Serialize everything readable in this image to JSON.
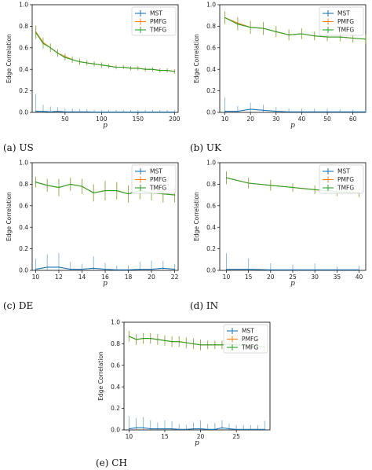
{
  "colors": {
    "MST": "#1f77b4",
    "PMFG": "#ff7f0e",
    "TMFG": "#2ca02c",
    "errbar_alpha": 0.55
  },
  "chart_data": [
    {
      "id": "us",
      "type": "line",
      "caption": "(a)  US",
      "xlabel": "p",
      "ylabel": "Edge Correlation",
      "xlim": [
        5,
        205
      ],
      "ylim": [
        0,
        1.0
      ],
      "xticks": [
        50,
        100,
        150,
        200
      ],
      "yticks": [
        0.0,
        0.2,
        0.4,
        0.6,
        0.8,
        1.0
      ],
      "legend": "top-right",
      "series": [
        {
          "name": "MST",
          "x": [
            10,
            20,
            30,
            40,
            50,
            60,
            70,
            80,
            90,
            100,
            110,
            120,
            130,
            140,
            150,
            160,
            170,
            180,
            190,
            200
          ],
          "y": [
            0.01,
            0.01,
            0.005,
            0.01,
            0.005,
            0.005,
            0.005,
            0.005,
            0.003,
            0.003,
            0.003,
            0.003,
            0.003,
            0.003,
            0.003,
            0.003,
            0.003,
            0.003,
            0.003,
            0.003
          ],
          "err": [
            0.16,
            0.06,
            0.05,
            0.04,
            0.03,
            0.03,
            0.025,
            0.025,
            0.02,
            0.02,
            0.02,
            0.02,
            0.02,
            0.02,
            0.02,
            0.02,
            0.02,
            0.02,
            0.02,
            0.02
          ]
        },
        {
          "name": "PMFG",
          "x": [
            10,
            20,
            30,
            40,
            50,
            60,
            70,
            80,
            90,
            100,
            110,
            120,
            130,
            140,
            150,
            160,
            170,
            180,
            190,
            200
          ],
          "y": [
            0.75,
            0.65,
            0.6,
            0.55,
            0.52,
            0.49,
            0.47,
            0.46,
            0.45,
            0.44,
            0.43,
            0.42,
            0.42,
            0.41,
            0.41,
            0.4,
            0.4,
            0.39,
            0.39,
            0.38
          ],
          "err": [
            0.06,
            0.05,
            0.04,
            0.035,
            0.03,
            0.03,
            0.03,
            0.025,
            0.025,
            0.025,
            0.02,
            0.02,
            0.02,
            0.02,
            0.02,
            0.02,
            0.02,
            0.02,
            0.02,
            0.02
          ]
        },
        {
          "name": "TMFG",
          "x": [
            10,
            20,
            30,
            40,
            50,
            60,
            70,
            80,
            90,
            100,
            110,
            120,
            130,
            140,
            150,
            160,
            170,
            180,
            190,
            200
          ],
          "y": [
            0.74,
            0.64,
            0.6,
            0.55,
            0.51,
            0.49,
            0.47,
            0.46,
            0.45,
            0.44,
            0.43,
            0.42,
            0.42,
            0.41,
            0.41,
            0.4,
            0.4,
            0.39,
            0.39,
            0.38
          ],
          "err": [
            0.06,
            0.05,
            0.04,
            0.035,
            0.03,
            0.03,
            0.03,
            0.025,
            0.025,
            0.025,
            0.02,
            0.02,
            0.02,
            0.02,
            0.02,
            0.02,
            0.02,
            0.02,
            0.02,
            0.02
          ]
        }
      ]
    },
    {
      "id": "uk",
      "type": "line",
      "caption": "(b)  UK",
      "xlabel": "p",
      "ylabel": "Edge Correlation",
      "xlim": [
        8,
        65
      ],
      "ylim": [
        0,
        1.0
      ],
      "xticks": [
        10,
        20,
        30,
        40,
        50,
        60
      ],
      "yticks": [
        0.0,
        0.2,
        0.4,
        0.6,
        0.8,
        1.0
      ],
      "legend": "top-right",
      "series": [
        {
          "name": "MST",
          "x": [
            10,
            15,
            20,
            25,
            30,
            35,
            40,
            45,
            50,
            55,
            60,
            65
          ],
          "y": [
            0.01,
            0.01,
            0.03,
            0.02,
            0.01,
            0.005,
            0.005,
            0.005,
            0.005,
            0.005,
            0.005,
            0.005
          ],
          "err": [
            0.13,
            0.05,
            0.06,
            0.05,
            0.04,
            0.03,
            0.03,
            0.03,
            0.03,
            0.02,
            0.02,
            0.02
          ]
        },
        {
          "name": "PMFG",
          "x": [
            10,
            15,
            20,
            25,
            30,
            35,
            40,
            45,
            50,
            55,
            60,
            65
          ],
          "y": [
            0.88,
            0.83,
            0.79,
            0.78,
            0.75,
            0.72,
            0.73,
            0.71,
            0.7,
            0.7,
            0.69,
            0.68
          ],
          "err": [
            0.06,
            0.06,
            0.06,
            0.06,
            0.05,
            0.05,
            0.05,
            0.04,
            0.04,
            0.04,
            0.04,
            0.04
          ]
        },
        {
          "name": "TMFG",
          "x": [
            10,
            15,
            20,
            25,
            30,
            35,
            40,
            45,
            50,
            55,
            60,
            65
          ],
          "y": [
            0.88,
            0.82,
            0.79,
            0.78,
            0.75,
            0.72,
            0.73,
            0.71,
            0.7,
            0.7,
            0.69,
            0.68
          ],
          "err": [
            0.06,
            0.06,
            0.06,
            0.06,
            0.05,
            0.05,
            0.05,
            0.04,
            0.04,
            0.04,
            0.04,
            0.04
          ]
        }
      ]
    },
    {
      "id": "de",
      "type": "line",
      "caption": "(c)  DE",
      "xlabel": "p",
      "ylabel": "Edge Correlation",
      "xlim": [
        9.7,
        22.3
      ],
      "ylim": [
        0,
        1.0
      ],
      "xticks": [
        10,
        12,
        14,
        16,
        18,
        20,
        22
      ],
      "yticks": [
        0.0,
        0.2,
        0.4,
        0.6,
        0.8,
        1.0
      ],
      "legend": "top-right",
      "series": [
        {
          "name": "MST",
          "x": [
            10,
            11,
            12,
            13,
            14,
            15,
            16,
            17,
            18,
            19,
            20,
            21,
            22
          ],
          "y": [
            0.01,
            0.03,
            0.03,
            0.01,
            0.01,
            0.02,
            0.01,
            0.005,
            0.005,
            0.01,
            0.01,
            0.02,
            0.01
          ],
          "err": [
            0.1,
            0.12,
            0.13,
            0.07,
            0.05,
            0.11,
            0.06,
            0.04,
            0.04,
            0.07,
            0.08,
            0.07,
            0.05
          ]
        },
        {
          "name": "PMFG",
          "x": [
            10,
            11,
            12,
            13,
            14,
            15,
            16,
            17,
            18,
            19,
            20,
            21,
            22
          ],
          "y": [
            0.82,
            0.79,
            0.77,
            0.8,
            0.78,
            0.72,
            0.74,
            0.74,
            0.71,
            0.74,
            0.72,
            0.71,
            0.7
          ],
          "err": [
            0.05,
            0.06,
            0.08,
            0.06,
            0.07,
            0.08,
            0.09,
            0.08,
            0.08,
            0.08,
            0.07,
            0.08,
            0.07
          ]
        },
        {
          "name": "TMFG",
          "x": [
            10,
            11,
            12,
            13,
            14,
            15,
            16,
            17,
            18,
            19,
            20,
            21,
            22
          ],
          "y": [
            0.82,
            0.79,
            0.77,
            0.8,
            0.78,
            0.72,
            0.74,
            0.74,
            0.71,
            0.74,
            0.72,
            0.71,
            0.7
          ],
          "err": [
            0.05,
            0.06,
            0.08,
            0.06,
            0.07,
            0.08,
            0.09,
            0.08,
            0.08,
            0.08,
            0.07,
            0.08,
            0.07
          ]
        }
      ]
    },
    {
      "id": "in",
      "type": "line",
      "caption": "(d)  IN",
      "xlabel": "p",
      "ylabel": "Edge Correlation",
      "xlim": [
        8.5,
        41.5
      ],
      "ylim": [
        0,
        1.0
      ],
      "xticks": [
        10,
        15,
        20,
        25,
        30,
        35,
        40
      ],
      "yticks": [
        0.0,
        0.2,
        0.4,
        0.6,
        0.8,
        1.0
      ],
      "legend": "top-right",
      "series": [
        {
          "name": "MST",
          "x": [
            10,
            15,
            20,
            25,
            30,
            35,
            40
          ],
          "y": [
            0.01,
            0.01,
            0.005,
            0.005,
            0.005,
            0.005,
            0.005
          ],
          "err": [
            0.15,
            0.1,
            0.06,
            0.05,
            0.06,
            0.03,
            0.04
          ]
        },
        {
          "name": "PMFG",
          "x": [
            10,
            15,
            20,
            25,
            30,
            35,
            40
          ],
          "y": [
            0.86,
            0.81,
            0.79,
            0.77,
            0.75,
            0.73,
            0.72
          ],
          "err": [
            0.06,
            0.05,
            0.05,
            0.04,
            0.04,
            0.04,
            0.04
          ]
        },
        {
          "name": "TMFG",
          "x": [
            10,
            15,
            20,
            25,
            30,
            35,
            40
          ],
          "y": [
            0.86,
            0.81,
            0.79,
            0.77,
            0.75,
            0.73,
            0.72
          ],
          "err": [
            0.06,
            0.05,
            0.05,
            0.04,
            0.04,
            0.04,
            0.04
          ]
        }
      ]
    },
    {
      "id": "ch",
      "type": "line",
      "caption": "(e)  CH",
      "xlabel": "p",
      "ylabel": "Edge Correlation",
      "xlim": [
        9.3,
        29.7
      ],
      "ylim": [
        0,
        1.0
      ],
      "xticks": [
        10,
        15,
        20,
        25
      ],
      "yticks": [
        0.0,
        0.2,
        0.4,
        0.6,
        0.8,
        1.0
      ],
      "legend": "top-right",
      "series": [
        {
          "name": "MST",
          "x": [
            10,
            11,
            12,
            13,
            14,
            15,
            16,
            17,
            18,
            19,
            20,
            21,
            22,
            23,
            24,
            25,
            26,
            27,
            28,
            29
          ],
          "y": [
            0.01,
            0.02,
            0.02,
            0.01,
            0.01,
            0.01,
            0.01,
            0.005,
            0.005,
            0.01,
            0.01,
            0.005,
            0.005,
            0.02,
            0.01,
            0.005,
            0.005,
            0.005,
            0.005,
            0.005
          ],
          "err": [
            0.12,
            0.09,
            0.1,
            0.08,
            0.06,
            0.08,
            0.07,
            0.05,
            0.04,
            0.06,
            0.08,
            0.05,
            0.06,
            0.07,
            0.05,
            0.04,
            0.04,
            0.04,
            0.04,
            0.08
          ]
        },
        {
          "name": "PMFG",
          "x": [
            10,
            11,
            12,
            13,
            14,
            15,
            16,
            17,
            18,
            19,
            20,
            21,
            22,
            23,
            24,
            25,
            26,
            27,
            28,
            29
          ],
          "y": [
            0.87,
            0.84,
            0.85,
            0.85,
            0.84,
            0.83,
            0.82,
            0.82,
            0.81,
            0.8,
            0.79,
            0.79,
            0.79,
            0.79,
            0.8,
            0.79,
            0.78,
            0.78,
            0.78,
            0.77
          ],
          "err": [
            0.05,
            0.05,
            0.05,
            0.05,
            0.05,
            0.05,
            0.05,
            0.05,
            0.05,
            0.05,
            0.05,
            0.04,
            0.04,
            0.04,
            0.04,
            0.04,
            0.04,
            0.04,
            0.04,
            0.04
          ]
        },
        {
          "name": "TMFG",
          "x": [
            10,
            11,
            12,
            13,
            14,
            15,
            16,
            17,
            18,
            19,
            20,
            21,
            22,
            23,
            24,
            25,
            26,
            27,
            28,
            29
          ],
          "y": [
            0.87,
            0.84,
            0.85,
            0.85,
            0.84,
            0.83,
            0.82,
            0.82,
            0.81,
            0.8,
            0.79,
            0.79,
            0.79,
            0.79,
            0.8,
            0.79,
            0.78,
            0.78,
            0.78,
            0.77
          ],
          "err": [
            0.05,
            0.05,
            0.05,
            0.05,
            0.05,
            0.05,
            0.05,
            0.05,
            0.05,
            0.05,
            0.05,
            0.04,
            0.04,
            0.04,
            0.04,
            0.04,
            0.04,
            0.04,
            0.04,
            0.04
          ]
        }
      ]
    }
  ]
}
